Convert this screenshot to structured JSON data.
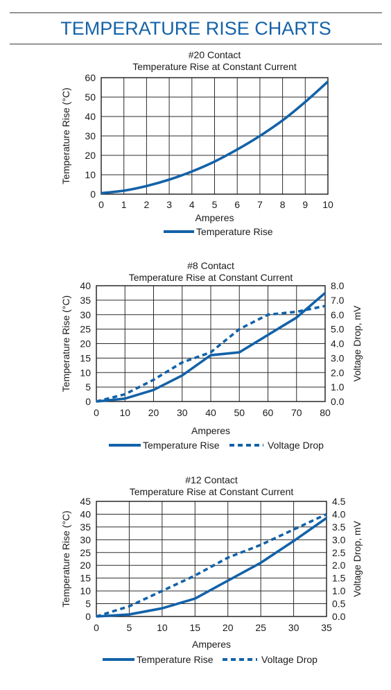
{
  "page": {
    "title": "TEMPERATURE RISE CHARTS"
  },
  "colors": {
    "accent": "#1563a8",
    "series": "#1262a8",
    "grid": "#2b2b2b"
  },
  "chart_data": [
    {
      "type": "line",
      "title": "#20 Contact",
      "subtitle": "Temperature Rise at Constant Current",
      "xlabel": "Amperes",
      "ylabel": "Temperature Rise  (°C)",
      "xlim": [
        0,
        10
      ],
      "ylim": [
        0,
        60
      ],
      "xticks": [
        0,
        1,
        2,
        3,
        4,
        5,
        6,
        7,
        8,
        9,
        10
      ],
      "yticks": [
        0,
        10,
        20,
        30,
        40,
        50,
        60
      ],
      "grid": true,
      "legend": "bottom",
      "series": [
        {
          "name": "Temperature Rise",
          "axis": "left",
          "style": "solid",
          "x": [
            0,
            1,
            2,
            3,
            4,
            5,
            6,
            7,
            8,
            9,
            10
          ],
          "y": [
            0.5,
            1.8,
            4.2,
            7.5,
            11.7,
            16.8,
            23,
            30,
            38,
            47.5,
            58
          ]
        }
      ]
    },
    {
      "type": "line",
      "title": "#8 Contact",
      "subtitle": "Temperature Rise at Constant Current",
      "xlabel": "Amperes",
      "ylabel": "Temperature Rise  (°C)",
      "y2label": "Voltage Drop, mV",
      "xlim": [
        0,
        80
      ],
      "ylim": [
        0,
        40
      ],
      "y2lim": [
        0,
        8
      ],
      "xticks": [
        0,
        10,
        20,
        30,
        40,
        50,
        60,
        70,
        80
      ],
      "yticks": [
        0,
        5,
        10,
        15,
        20,
        25,
        30,
        35,
        40
      ],
      "y2ticks": [
        "0.0",
        "1.0",
        "2.0",
        "3.0",
        "4.0",
        "5.0",
        "6.0",
        "7.0",
        "8.0"
      ],
      "grid": true,
      "legend": "bottom",
      "series": [
        {
          "name": "Temperature Rise",
          "axis": "left",
          "style": "solid",
          "x": [
            0,
            10,
            20,
            30,
            40,
            50,
            60,
            70,
            80
          ],
          "y": [
            0,
            1,
            4,
            9,
            16,
            17,
            23,
            29,
            37.5
          ]
        },
        {
          "name": "Voltage Drop",
          "axis": "right",
          "style": "dashed",
          "x": [
            0,
            10,
            20,
            30,
            40,
            50,
            60,
            70,
            80
          ],
          "y": [
            0,
            0.5,
            1.5,
            2.7,
            3.4,
            5.0,
            6.0,
            6.2,
            6.6
          ]
        }
      ]
    },
    {
      "type": "line",
      "title": "#12 Contact",
      "subtitle": "Temperature Rise at Constant Current",
      "xlabel": "Amperes",
      "ylabel": "Temperature Rise  (°C)",
      "y2label": "Voltage Drop, mV",
      "xlim": [
        0,
        35
      ],
      "ylim": [
        0,
        45
      ],
      "y2lim": [
        0,
        4.5
      ],
      "xticks": [
        0,
        5,
        10,
        15,
        20,
        25,
        30,
        35
      ],
      "yticks": [
        0,
        5,
        10,
        15,
        20,
        25,
        30,
        35,
        40,
        45
      ],
      "y2ticks": [
        "0.0",
        "0.5",
        "1.0",
        "1.5",
        "2.0",
        "2.5",
        "3.0",
        "3.5",
        "4.0",
        "4.5"
      ],
      "grid": true,
      "legend": "bottom",
      "series": [
        {
          "name": "Temperature Rise",
          "axis": "left",
          "style": "solid",
          "x": [
            0,
            5,
            10,
            15,
            20,
            25,
            30,
            35
          ],
          "y": [
            0,
            0.8,
            3.2,
            7,
            14,
            21,
            29.5,
            38.5
          ]
        },
        {
          "name": "Voltage Drop",
          "axis": "right",
          "style": "dashed",
          "x": [
            0,
            5,
            10,
            15,
            20,
            25,
            30,
            35
          ],
          "y": [
            0,
            0.4,
            1.0,
            1.6,
            2.3,
            2.8,
            3.4,
            4.0
          ]
        }
      ]
    }
  ]
}
